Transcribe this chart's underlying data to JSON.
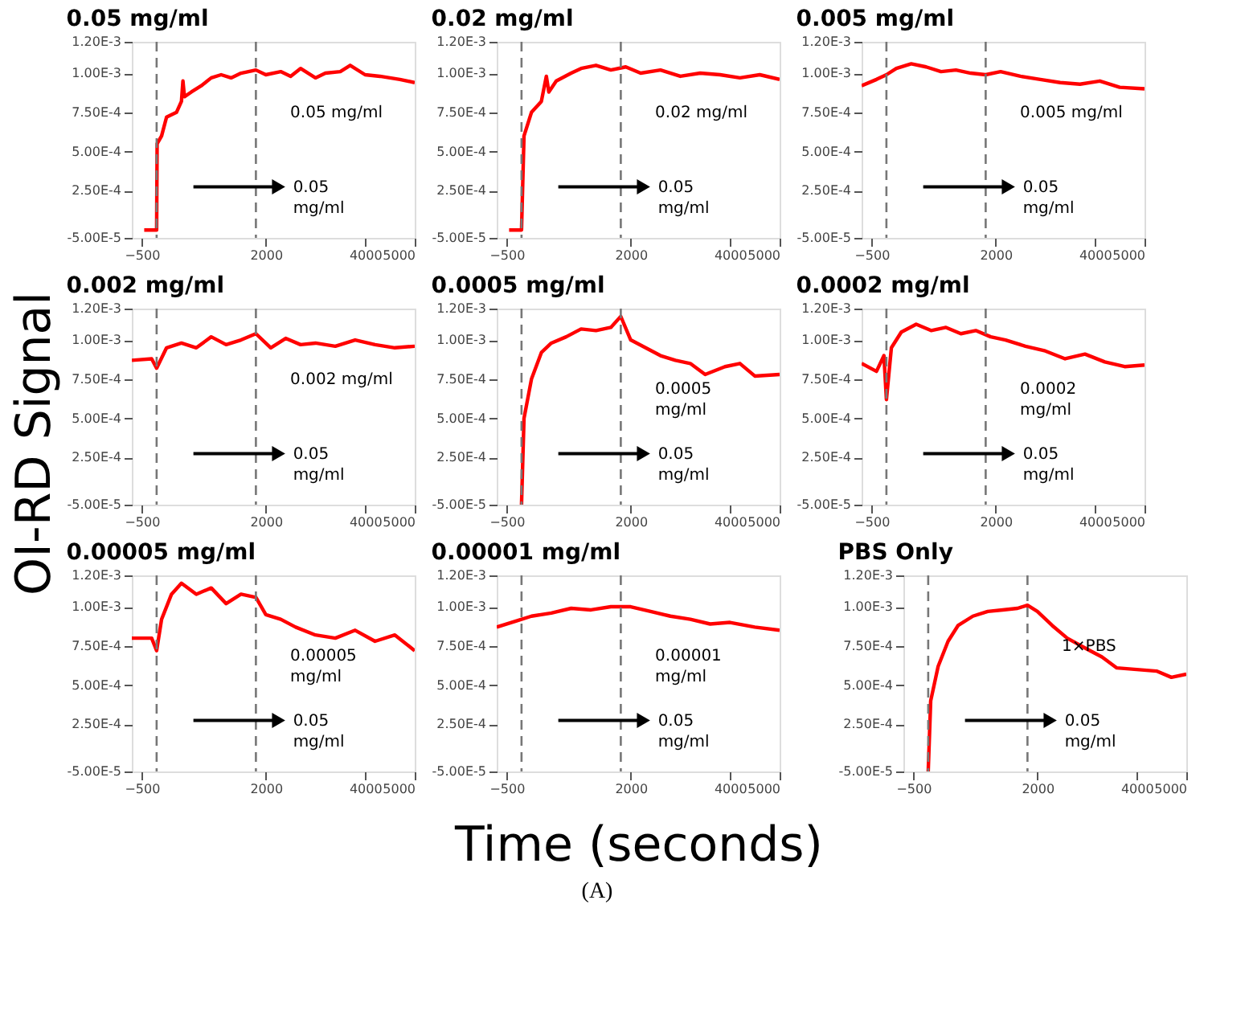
{
  "chart_data": [
    {
      "type": "line",
      "title": "0.05 mg/ml",
      "x": [
        -450,
        -200,
        -190,
        -100,
        0,
        200,
        300,
        330,
        360,
        500,
        700,
        900,
        1100,
        1300,
        1500,
        1800,
        2000,
        2300,
        2500,
        2700,
        3000,
        3200,
        3500,
        3700,
        4000,
        4300,
        4500,
        4700,
        5000
      ],
      "series": [
        {
          "color": "#ff0000",
          "values": [
            0,
            0,
            0.00055,
            0.0006,
            0.00072,
            0.00075,
            0.00082,
            0.00095,
            0.00085,
            0.00088,
            0.00092,
            0.00097,
            0.00099,
            0.00097,
            0.001,
            0.00102,
            0.00099,
            0.00101,
            0.00098,
            0.00103,
            0.00097,
            0.001,
            0.00101,
            0.00105,
            0.00099,
            0.00098,
            0.00097,
            0.00096,
            0.00094
          ]
        }
      ],
      "xlim": [
        -700,
        5000
      ],
      "xticks": [
        -500,
        2000,
        4000,
        5000
      ],
      "ylim": [
        -5e-05,
        0.0012
      ],
      "yticks": [
        {
          "value": -5e-05,
          "label": "-5.00E-5"
        },
        {
          "value": 0.00025,
          "label": "2.50E-4"
        },
        {
          "value": 0.0005,
          "label": "5.00E-4"
        },
        {
          "value": 0.00075,
          "label": "7.50E-4"
        },
        {
          "value": 0.001,
          "label": "1.00E-3"
        },
        {
          "value": 0.0012,
          "label": "1.20E-3"
        }
      ],
      "ref_lines": [
        {
          "axis": "x",
          "value": -200,
          "color": "#777777",
          "line_style": "dashed"
        },
        {
          "axis": "x",
          "value": 1800,
          "color": "#777777",
          "line_style": "dashed"
        }
      ],
      "annotations": [
        "0.05 mg/ml",
        "0.05\nmg/ml"
      ],
      "grid": false,
      "marker": "none",
      "line_style": "solid"
    },
    {
      "type": "line",
      "title": "0.02 mg/ml",
      "x": [
        -450,
        -200,
        -150,
        0,
        200,
        300,
        350,
        500,
        800,
        1000,
        1300,
        1600,
        1900,
        2200,
        2600,
        3000,
        3400,
        3800,
        4200,
        4600,
        5000
      ],
      "series": [
        {
          "color": "#ff0000",
          "values": [
            0,
            0,
            0.0006,
            0.00075,
            0.00082,
            0.00098,
            0.00088,
            0.00095,
            0.001,
            0.00103,
            0.00105,
            0.00102,
            0.00104,
            0.001,
            0.00102,
            0.00098,
            0.001,
            0.00099,
            0.00097,
            0.00099,
            0.00096
          ]
        }
      ],
      "xlim": [
        -700,
        5000
      ],
      "xticks": [
        -500,
        2000,
        4000,
        5000
      ],
      "ylim": [
        -5e-05,
        0.0012
      ],
      "yticks": [
        {
          "value": -5e-05,
          "label": "-5.00E-5"
        },
        {
          "value": 0.00025,
          "label": "2.50E-4"
        },
        {
          "value": 0.0005,
          "label": "5.00E-4"
        },
        {
          "value": 0.00075,
          "label": "7.50E-4"
        },
        {
          "value": 0.001,
          "label": "1.00E-3"
        },
        {
          "value": 0.0012,
          "label": "1.20E-3"
        }
      ],
      "ref_lines": [
        {
          "axis": "x",
          "value": -200,
          "color": "#777777",
          "line_style": "dashed"
        },
        {
          "axis": "x",
          "value": 1800,
          "color": "#777777",
          "line_style": "dashed"
        }
      ],
      "annotations": [
        "0.02 mg/ml",
        "0.05\nmg/ml"
      ],
      "grid": false,
      "marker": "none",
      "line_style": "solid"
    },
    {
      "type": "line",
      "title": "0.005 mg/ml",
      "x": [
        -700,
        -400,
        -200,
        0,
        300,
        600,
        900,
        1200,
        1500,
        1800,
        2100,
        2500,
        2900,
        3300,
        3700,
        4100,
        4500,
        5000
      ],
      "series": [
        {
          "color": "#ff0000",
          "values": [
            0.00092,
            0.00096,
            0.00099,
            0.00103,
            0.00106,
            0.00104,
            0.00101,
            0.00102,
            0.001,
            0.00099,
            0.00101,
            0.00098,
            0.00096,
            0.00094,
            0.00093,
            0.00095,
            0.00091,
            0.0009
          ]
        }
      ],
      "xlim": [
        -700,
        5000
      ],
      "xticks": [
        -500,
        2000,
        4000,
        5000
      ],
      "ylim": [
        -5e-05,
        0.0012
      ],
      "yticks": [
        {
          "value": -5e-05,
          "label": "-5.00E-5"
        },
        {
          "value": 0.00025,
          "label": "2.50E-4"
        },
        {
          "value": 0.0005,
          "label": "5.00E-4"
        },
        {
          "value": 0.00075,
          "label": "7.50E-4"
        },
        {
          "value": 0.001,
          "label": "1.00E-3"
        },
        {
          "value": 0.0012,
          "label": "1.20E-3"
        }
      ],
      "ref_lines": [
        {
          "axis": "x",
          "value": -200,
          "color": "#777777",
          "line_style": "dashed"
        },
        {
          "axis": "x",
          "value": 1800,
          "color": "#777777",
          "line_style": "dashed"
        }
      ],
      "annotations": [
        "0.005 mg/ml",
        "0.05\nmg/ml"
      ],
      "grid": false,
      "marker": "none",
      "line_style": "solid"
    },
    {
      "type": "line",
      "title": "0.002 mg/ml",
      "ylabel": "OI-RD Signal",
      "x": [
        -700,
        -300,
        -200,
        0,
        300,
        600,
        900,
        1200,
        1500,
        1800,
        2100,
        2400,
        2700,
        3000,
        3400,
        3800,
        4200,
        4600,
        5000
      ],
      "series": [
        {
          "color": "#ff0000",
          "values": [
            0.00087,
            0.00088,
            0.00082,
            0.00095,
            0.00098,
            0.00095,
            0.00102,
            0.00097,
            0.001,
            0.00104,
            0.00095,
            0.00101,
            0.00097,
            0.00098,
            0.00096,
            0.001,
            0.00097,
            0.00095,
            0.00096
          ]
        }
      ],
      "xlim": [
        -700,
        5000
      ],
      "xticks": [
        -500,
        2000,
        4000,
        5000
      ],
      "ylim": [
        -5e-05,
        0.0012
      ],
      "yticks": [
        {
          "value": -5e-05,
          "label": "-5.00E-5"
        },
        {
          "value": 0.00025,
          "label": "2.50E-4"
        },
        {
          "value": 0.0005,
          "label": "5.00E-4"
        },
        {
          "value": 0.00075,
          "label": "7.50E-4"
        },
        {
          "value": 0.001,
          "label": "1.00E-3"
        },
        {
          "value": 0.0012,
          "label": "1.20E-3"
        }
      ],
      "ref_lines": [
        {
          "axis": "x",
          "value": -200,
          "color": "#777777",
          "line_style": "dashed"
        },
        {
          "axis": "x",
          "value": 1800,
          "color": "#777777",
          "line_style": "dashed"
        }
      ],
      "annotations": [
        "0.002 mg/ml",
        "0.05\nmg/ml"
      ],
      "grid": false,
      "marker": "none",
      "line_style": "solid"
    },
    {
      "type": "line",
      "title": "0.0005 mg/ml",
      "x": [
        -200,
        -150,
        0,
        200,
        400,
        700,
        1000,
        1300,
        1600,
        1800,
        2000,
        2300,
        2600,
        2900,
        3200,
        3500,
        3900,
        4200,
        4500,
        5000
      ],
      "series": [
        {
          "color": "#ff0000",
          "values": [
            -5e-05,
            0.0005,
            0.00075,
            0.00092,
            0.00098,
            0.00102,
            0.00107,
            0.00106,
            0.00108,
            0.00115,
            0.001,
            0.00095,
            0.0009,
            0.00087,
            0.00085,
            0.00078,
            0.00083,
            0.00085,
            0.00077,
            0.00078
          ]
        }
      ],
      "xlim": [
        -700,
        5000
      ],
      "xticks": [
        -500,
        2000,
        4000,
        5000
      ],
      "ylim": [
        -5e-05,
        0.0012
      ],
      "yticks": [
        {
          "value": -5e-05,
          "label": "-5.00E-5"
        },
        {
          "value": 0.00025,
          "label": "2.50E-4"
        },
        {
          "value": 0.0005,
          "label": "5.00E-4"
        },
        {
          "value": 0.00075,
          "label": "7.50E-4"
        },
        {
          "value": 0.001,
          "label": "1.00E-3"
        },
        {
          "value": 0.0012,
          "label": "1.20E-3"
        }
      ],
      "ref_lines": [
        {
          "axis": "x",
          "value": -200,
          "color": "#777777",
          "line_style": "dashed"
        },
        {
          "axis": "x",
          "value": 1800,
          "color": "#777777",
          "line_style": "dashed"
        }
      ],
      "annotations": [
        "0.0005\nmg/ml",
        "0.05\nmg/ml"
      ],
      "grid": false,
      "marker": "none",
      "line_style": "solid"
    },
    {
      "type": "line",
      "title": "0.0002 mg/ml",
      "x": [
        -700,
        -400,
        -250,
        -200,
        -100,
        100,
        400,
        700,
        1000,
        1300,
        1600,
        1900,
        2200,
        2600,
        3000,
        3400,
        3800,
        4200,
        4600,
        5000
      ],
      "series": [
        {
          "color": "#ff0000",
          "values": [
            0.00085,
            0.0008,
            0.0009,
            0.00062,
            0.00095,
            0.00105,
            0.0011,
            0.00106,
            0.00108,
            0.00104,
            0.00106,
            0.00102,
            0.001,
            0.00096,
            0.00093,
            0.00088,
            0.00091,
            0.00086,
            0.00083,
            0.00084
          ]
        }
      ],
      "xlim": [
        -700,
        5000
      ],
      "xticks": [
        -500,
        2000,
        4000,
        5000
      ],
      "ylim": [
        -5e-05,
        0.0012
      ],
      "yticks": [
        {
          "value": -5e-05,
          "label": "-5.00E-5"
        },
        {
          "value": 0.00025,
          "label": "2.50E-4"
        },
        {
          "value": 0.0005,
          "label": "5.00E-4"
        },
        {
          "value": 0.00075,
          "label": "7.50E-4"
        },
        {
          "value": 0.001,
          "label": "1.00E-3"
        },
        {
          "value": 0.0012,
          "label": "1.20E-3"
        }
      ],
      "ref_lines": [
        {
          "axis": "x",
          "value": -200,
          "color": "#777777",
          "line_style": "dashed"
        },
        {
          "axis": "x",
          "value": 1800,
          "color": "#777777",
          "line_style": "dashed"
        }
      ],
      "annotations": [
        "0.0002\nmg/ml",
        "0.05\nmg/ml"
      ],
      "grid": false,
      "marker": "none",
      "line_style": "solid"
    },
    {
      "type": "line",
      "title": "0.00005 mg/ml",
      "x": [
        -700,
        -300,
        -200,
        -100,
        100,
        300,
        600,
        900,
        1200,
        1500,
        1800,
        2000,
        2300,
        2600,
        3000,
        3400,
        3800,
        4200,
        4600,
        5000
      ],
      "series": [
        {
          "color": "#ff0000",
          "values": [
            0.0008,
            0.0008,
            0.00072,
            0.00092,
            0.00108,
            0.00115,
            0.00108,
            0.00112,
            0.00102,
            0.00108,
            0.00106,
            0.00095,
            0.00092,
            0.00087,
            0.00082,
            0.0008,
            0.00085,
            0.00078,
            0.00082,
            0.00072
          ]
        }
      ],
      "xlim": [
        -700,
        5000
      ],
      "xticks": [
        -500,
        2000,
        4000,
        5000
      ],
      "ylim": [
        -5e-05,
        0.0012
      ],
      "yticks": [
        {
          "value": -5e-05,
          "label": "-5.00E-5"
        },
        {
          "value": 0.00025,
          "label": "2.50E-4"
        },
        {
          "value": 0.0005,
          "label": "5.00E-4"
        },
        {
          "value": 0.00075,
          "label": "7.50E-4"
        },
        {
          "value": 0.001,
          "label": "1.00E-3"
        },
        {
          "value": 0.0012,
          "label": "1.20E-3"
        }
      ],
      "ref_lines": [
        {
          "axis": "x",
          "value": -200,
          "color": "#777777",
          "line_style": "dashed"
        },
        {
          "axis": "x",
          "value": 1800,
          "color": "#777777",
          "line_style": "dashed"
        }
      ],
      "annotations": [
        "0.00005\nmg/ml",
        "0.05\nmg/ml"
      ],
      "grid": false,
      "marker": "none",
      "line_style": "solid"
    },
    {
      "type": "line",
      "title": "0.00001 mg/ml",
      "xlabel": "Time (seconds)",
      "x": [
        -700,
        -300,
        0,
        400,
        800,
        1200,
        1600,
        2000,
        2400,
        2800,
        3200,
        3600,
        4000,
        4500,
        5000
      ],
      "series": [
        {
          "color": "#ff0000",
          "values": [
            0.00087,
            0.00091,
            0.00094,
            0.00096,
            0.00099,
            0.00098,
            0.001,
            0.001,
            0.00097,
            0.00094,
            0.00092,
            0.00089,
            0.0009,
            0.00087,
            0.00085
          ]
        }
      ],
      "xlim": [
        -700,
        5000
      ],
      "xticks": [
        -500,
        2000,
        4000,
        5000
      ],
      "ylim": [
        -5e-05,
        0.0012
      ],
      "yticks": [
        {
          "value": -5e-05,
          "label": "-5.00E-5"
        },
        {
          "value": 0.00025,
          "label": "2.50E-4"
        },
        {
          "value": 0.0005,
          "label": "5.00E-4"
        },
        {
          "value": 0.00075,
          "label": "7.50E-4"
        },
        {
          "value": 0.001,
          "label": "1.00E-3"
        },
        {
          "value": 0.0012,
          "label": "1.20E-3"
        }
      ],
      "ref_lines": [
        {
          "axis": "x",
          "value": -200,
          "color": "#777777",
          "line_style": "dashed"
        },
        {
          "axis": "x",
          "value": 1800,
          "color": "#777777",
          "line_style": "dashed"
        }
      ],
      "annotations": [
        "0.00001\nmg/ml",
        "0.05\nmg/ml",
        "(A)"
      ],
      "grid": false,
      "marker": "none",
      "line_style": "solid"
    },
    {
      "type": "line",
      "title": "PBS Only",
      "x": [
        -200,
        -150,
        0,
        200,
        400,
        700,
        1000,
        1300,
        1600,
        1800,
        2000,
        2300,
        2600,
        3000,
        3300,
        3600,
        4000,
        4400,
        4700,
        5000
      ],
      "series": [
        {
          "color": "#ff0000",
          "values": [
            -5e-05,
            0.0004,
            0.00062,
            0.00078,
            0.00088,
            0.00094,
            0.00097,
            0.00098,
            0.00099,
            0.00101,
            0.00097,
            0.00088,
            0.0008,
            0.00073,
            0.00068,
            0.00061,
            0.0006,
            0.00059,
            0.00055,
            0.00057
          ]
        }
      ],
      "xlim": [
        -700,
        5000
      ],
      "xticks": [
        -500,
        2000,
        4000,
        5000
      ],
      "ylim": [
        -5e-05,
        0.0012
      ],
      "yticks": [
        {
          "value": -5e-05,
          "label": "-5.00E-5"
        },
        {
          "value": 0.00025,
          "label": "2.50E-4"
        },
        {
          "value": 0.0005,
          "label": "5.00E-4"
        },
        {
          "value": 0.00075,
          "label": "7.50E-4"
        },
        {
          "value": 0.001,
          "label": "1.00E-3"
        },
        {
          "value": 0.0012,
          "label": "1.20E-3"
        }
      ],
      "ref_lines": [
        {
          "axis": "x",
          "value": -200,
          "color": "#777777",
          "line_style": "dashed"
        },
        {
          "axis": "x",
          "value": 1800,
          "color": "#777777",
          "line_style": "dashed"
        }
      ],
      "annotations": [
        "1×PBS",
        "0.05\nmg/ml"
      ],
      "grid": false,
      "marker": "none",
      "line_style": "solid"
    }
  ]
}
